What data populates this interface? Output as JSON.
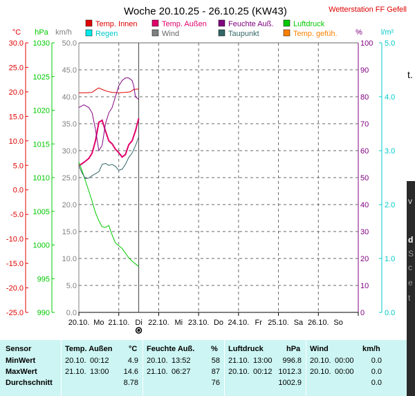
{
  "title": "Woche 20.10.25 - 26.10.25 (KW43)",
  "station": "Wetterstation FF Gefell",
  "legend": [
    {
      "label": "Temp. Innen",
      "color": "#e00000"
    },
    {
      "label": "Temp. Außen",
      "color": "#e0006a"
    },
    {
      "label": "Feuchte Auß.",
      "color": "#800080"
    },
    {
      "label": "Luftdruck",
      "color": "#00c800"
    },
    {
      "label": "Regen",
      "color": "#00e8e8"
    },
    {
      "label": "Wind",
      "color": "#808080"
    },
    {
      "label": "Taupunkt",
      "color": "#336666"
    },
    {
      "label": "Temp. gefüh.",
      "color": "#ff8000"
    }
  ],
  "axis_units": {
    "temp": "°C",
    "pressure": "hPa",
    "wind": "km/h",
    "humidity": "%",
    "rain": "l/m²"
  },
  "colors": {
    "temp": "#e00000",
    "pressure": "#00c800",
    "wind": "#808080",
    "humidity": "#800080",
    "rain": "#00c8c8",
    "grid": "#666666"
  },
  "side_glyphs": [
    "t.",
    "v",
    "d",
    "S",
    "c",
    "e",
    "t"
  ],
  "chart_data": {
    "type": "line",
    "title": "Woche 20.10.25 - 26.10.25 (KW43)",
    "x_labels": [
      "20.10.",
      "Mo",
      "21.10.",
      "Di",
      "22.10.",
      "Mi",
      "23.10.",
      "Do",
      "24.10.",
      "Fr",
      "25.10.",
      "Sa",
      "26.10.",
      "So"
    ],
    "x_range_hours": [
      0,
      168
    ],
    "current_time_hours": 36,
    "axes": {
      "temp": {
        "min": -25,
        "max": 30,
        "ticks": [
          "30.0",
          "25.0",
          "20.0",
          "15.0",
          "10.0",
          "5.0",
          "0.0",
          "-5.0",
          "-10.0",
          "-15.0",
          "-20.0",
          "-25.0"
        ]
      },
      "pressure": {
        "min": 990,
        "max": 1030,
        "ticks": [
          "1030",
          "1025",
          "1020",
          "1015",
          "1010",
          "1005",
          "1000",
          "995",
          "990"
        ]
      },
      "wind": {
        "min": 0,
        "max": 50,
        "ticks": [
          "50.0",
          "45.0",
          "40.0",
          "35.0",
          "30.0",
          "25.0",
          "20.0",
          "15.0",
          "10.0",
          "5.0",
          "0.0"
        ]
      },
      "humidity": {
        "min": 0,
        "max": 100,
        "ticks": [
          "100",
          "90",
          "80",
          "70",
          "60",
          "50",
          "40",
          "30",
          "20",
          "10",
          "0"
        ]
      },
      "rain": {
        "min": 0,
        "max": 5,
        "ticks": [
          "5.0",
          "4.0",
          "3.0",
          "2.0",
          "1.0",
          "0.0"
        ]
      }
    },
    "series": [
      {
        "name": "Temp. Innen",
        "axis": "temp",
        "color": "#e00000",
        "x": [
          0,
          4,
          8,
          10,
          12,
          14,
          17,
          20,
          24,
          28,
          31,
          33,
          36
        ],
        "y": [
          19.8,
          19.8,
          19.9,
          20.4,
          20.8,
          20.5,
          20.1,
          19.9,
          19.8,
          19.9,
          20.0,
          20.5,
          20.6
        ]
      },
      {
        "name": "Temp. Außen",
        "axis": "temp",
        "color": "#e0006a",
        "x": [
          0,
          3,
          6,
          8,
          10,
          12,
          14,
          16,
          18,
          20,
          22,
          24,
          26,
          28,
          30,
          32,
          34,
          36
        ],
        "y": [
          4.9,
          5.6,
          6.4,
          7.5,
          10.0,
          13.8,
          14.2,
          12.0,
          10.0,
          9.4,
          8.3,
          7.6,
          6.7,
          7.2,
          9.2,
          10.0,
          12.0,
          14.6
        ]
      },
      {
        "name": "Feuchte Auß.",
        "axis": "humidity",
        "color": "#800080",
        "x": [
          0,
          3,
          6,
          8,
          10,
          12,
          14,
          16,
          18,
          20,
          22,
          24,
          26,
          28,
          30,
          32,
          33,
          34,
          36
        ],
        "y": [
          76,
          77,
          76,
          74,
          68,
          60,
          62,
          70,
          74,
          76,
          80,
          84,
          86,
          87,
          87,
          86,
          84,
          80,
          79
        ]
      },
      {
        "name": "Luftdruck",
        "axis": "pressure",
        "color": "#00c800",
        "x": [
          0,
          2,
          4,
          6,
          8,
          10,
          12,
          14,
          16,
          18,
          20,
          22,
          24,
          26,
          28,
          30,
          32,
          34,
          36
        ],
        "y": [
          1012.3,
          1011.0,
          1009.5,
          1008.0,
          1006.5,
          1004.8,
          1003.6,
          1002.7,
          1002.6,
          1002.9,
          1001.5,
          1000.3,
          999.9,
          999.5,
          998.8,
          998.1,
          997.6,
          997.2,
          996.8
        ]
      },
      {
        "name": "Taupunkt",
        "axis": "temp",
        "color": "#336666",
        "x": [
          0,
          2,
          4,
          6,
          8,
          10,
          12,
          14,
          16,
          18,
          20,
          22,
          24,
          26,
          28,
          30,
          32,
          34,
          36
        ],
        "y": [
          4.9,
          3.4,
          2.3,
          2.4,
          2.9,
          3.3,
          3.7,
          5.2,
          5.4,
          5.0,
          5.2,
          4.8,
          4.0,
          4.2,
          5.2,
          6.6,
          7.5,
          9.0,
          10.8
        ]
      }
    ]
  },
  "stats": {
    "headers": [
      {
        "sensor": "Sensor",
        "t1": "Temp. Außen",
        "u1": "°C",
        "t2": "Feuchte Auß.",
        "u2": "%",
        "t3": "Luftdruck",
        "u3": "hPa",
        "t4": "Wind",
        "u4": "km/h"
      }
    ],
    "rows": [
      {
        "label": "MinWert",
        "c1": [
          "20.10.",
          "00:12",
          "4.9"
        ],
        "c2": [
          "20.10.",
          "13:52",
          "58"
        ],
        "c3": [
          "21.10.",
          "13:00",
          "996.8"
        ],
        "c4": [
          "20.10.",
          "00:00",
          "0.0"
        ]
      },
      {
        "label": "MaxWert",
        "c1": [
          "21.10.",
          "13:00",
          "14.6"
        ],
        "c2": [
          "21.10.",
          "06:27",
          "87"
        ],
        "c3": [
          "20.10.",
          "00:12",
          "1012.3"
        ],
        "c4": [
          "20.10.",
          "00:00",
          "0.0"
        ]
      },
      {
        "label": "Durchschnitt",
        "c1": [
          "",
          "",
          "8.78"
        ],
        "c2": [
          "",
          "",
          "76"
        ],
        "c3": [
          "",
          "",
          "1002.9"
        ],
        "c4": [
          "",
          "",
          "0.0"
        ]
      }
    ]
  }
}
